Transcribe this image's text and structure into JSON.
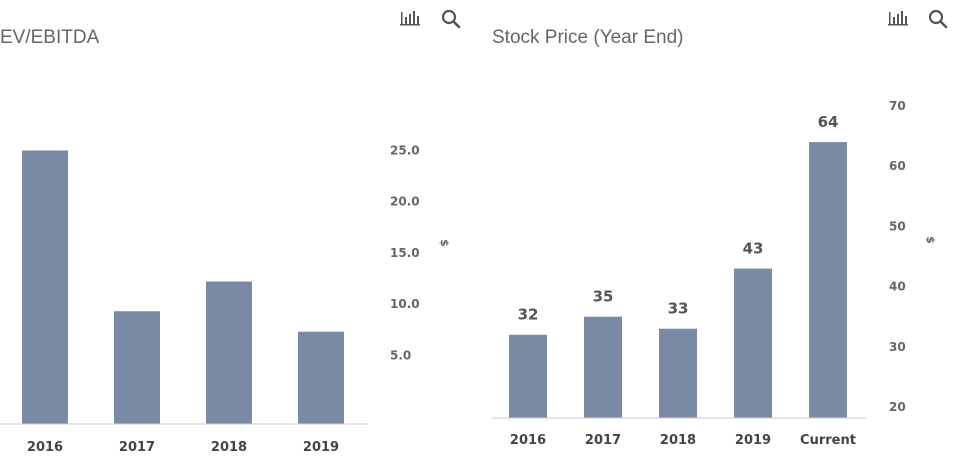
{
  "toolbar": {
    "icons": [
      "bar-chart-icon",
      "search-icon"
    ]
  },
  "chart_data": [
    {
      "type": "bar",
      "title": "EV/EBITDA",
      "categories": [
        "2016",
        "2017",
        "2018",
        "2019"
      ],
      "values": [
        25.0,
        9.3,
        12.2,
        7.3
      ],
      "ylabel": "$",
      "yticks": [
        "5.0",
        "10.0",
        "15.0",
        "20.0",
        "25.0"
      ],
      "ylim": [
        2.0,
        27.0
      ],
      "axis_side": "right",
      "data_labels": false,
      "grid": false,
      "bar_color": "#7a8aa4"
    },
    {
      "type": "bar",
      "title": "Stock Price (Year End)",
      "categories": [
        "2016",
        "2017",
        "2018",
        "2019",
        "Current"
      ],
      "values": [
        32,
        35,
        33,
        43,
        64
      ],
      "value_labels": [
        "32",
        "35",
        "33",
        "43",
        "64"
      ],
      "ylabel": "$",
      "yticks": [
        "20",
        "30",
        "40",
        "50",
        "60",
        "70"
      ],
      "ylim": [
        19,
        70
      ],
      "axis_side": "right",
      "data_labels": true,
      "grid": false,
      "bar_color": "#7a8aa4"
    }
  ]
}
